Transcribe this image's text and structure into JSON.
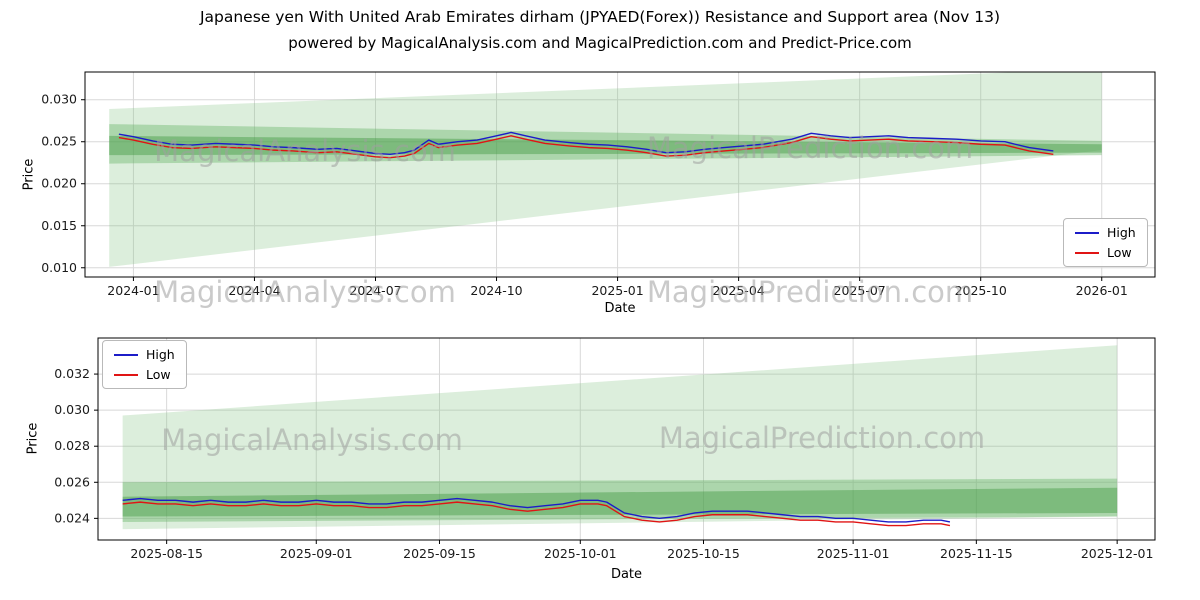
{
  "figure": {
    "title": "Japanese yen With United Arab Emirates dirham (JPYAED(Forex)) Resistance and Support area (Nov 13)",
    "subtitle": "powered by MagicalAnalysis.com and MagicalPrediction.com and Predict-Price.com",
    "watermark_left": "MagicalAnalysis.com",
    "watermark_right": "MagicalPrediction.com"
  },
  "colors": {
    "high": "#1c1cc8",
    "low": "#e01414",
    "grid": "#d8d8d8",
    "spine": "#000000",
    "tick_text": "#1a1a1a",
    "watermark": "#a0a0a0",
    "band_outer": "rgba(130,195,130,0.28)",
    "band_mid": "rgba(95,175,95,0.38)",
    "band_core": "rgba(60,150,60,0.42)"
  },
  "chart_data": [
    {
      "type": "line",
      "name": "history-chart",
      "xlabel": "Date",
      "ylabel": "Price",
      "x_unit": "decimal_year",
      "xlim": [
        2023.9,
        2026.11
      ],
      "ylim": [
        0.0089,
        0.0333
      ],
      "grid": true,
      "legend_position": "center right",
      "xticks": {
        "values": [
          2024.0,
          2024.25,
          2024.5,
          2024.75,
          2025.0,
          2025.25,
          2025.5,
          2025.75,
          2026.0
        ],
        "labels": [
          "2024-01",
          "2024-04",
          "2024-07",
          "2024-10",
          "2025-01",
          "2025-04",
          "2025-07",
          "2025-10",
          "2026-01"
        ]
      },
      "yticks": {
        "values": [
          0.01,
          0.015,
          0.02,
          0.025,
          0.03
        ],
        "labels": [
          "0.010",
          "0.015",
          "0.020",
          "0.025",
          "0.030"
        ]
      },
      "bands": [
        {
          "name": "support-resistance-outer-band",
          "color": "rgba(130,195,130,0.28)",
          "points": [
            [
              2023.95,
              0.0101
            ],
            [
              2026.0,
              0.024
            ],
            [
              2026.0,
              0.0337
            ],
            [
              2023.95,
              0.0289
            ]
          ]
        },
        {
          "name": "support-resistance-mid-band",
          "color": "rgba(95,175,95,0.38)",
          "points": [
            [
              2023.95,
              0.0224
            ],
            [
              2026.0,
              0.0234
            ],
            [
              2026.0,
              0.0251
            ],
            [
              2023.95,
              0.0271
            ]
          ]
        },
        {
          "name": "support-resistance-core-band",
          "color": "rgba(60,150,60,0.42)",
          "points": [
            [
              2023.95,
              0.0234
            ],
            [
              2026.0,
              0.0237
            ],
            [
              2026.0,
              0.0247
            ],
            [
              2023.95,
              0.0257
            ]
          ]
        }
      ],
      "x": [
        2023.97,
        2024.0,
        2024.04,
        2024.08,
        2024.12,
        2024.17,
        2024.21,
        2024.25,
        2024.29,
        2024.33,
        2024.38,
        2024.42,
        2024.46,
        2024.5,
        2024.53,
        2024.56,
        2024.58,
        2024.61,
        2024.63,
        2024.67,
        2024.71,
        2024.75,
        2024.78,
        2024.81,
        2024.85,
        2024.9,
        2024.94,
        2024.98,
        2025.02,
        2025.06,
        2025.1,
        2025.14,
        2025.18,
        2025.22,
        2025.26,
        2025.3,
        2025.33,
        2025.36,
        2025.4,
        2025.44,
        2025.48,
        2025.52,
        2025.56,
        2025.6,
        2025.65,
        2025.7,
        2025.75,
        2025.8,
        2025.85,
        2025.9
      ],
      "series": [
        {
          "name": "High",
          "color": "#1c1cc8",
          "y": [
            0.0259,
            0.0256,
            0.0251,
            0.0247,
            0.0246,
            0.0248,
            0.0247,
            0.0246,
            0.0244,
            0.0243,
            0.0241,
            0.0242,
            0.0239,
            0.0236,
            0.0235,
            0.0237,
            0.024,
            0.0252,
            0.0247,
            0.025,
            0.0252,
            0.0257,
            0.0261,
            0.0257,
            0.0252,
            0.0249,
            0.0247,
            0.0246,
            0.0244,
            0.0241,
            0.0237,
            0.0238,
            0.0241,
            0.0243,
            0.0245,
            0.0247,
            0.025,
            0.0253,
            0.026,
            0.0257,
            0.0255,
            0.0256,
            0.0257,
            0.0255,
            0.0254,
            0.0253,
            0.0251,
            0.025,
            0.0243,
            0.0239
          ]
        },
        {
          "name": "Low",
          "color": "#e01414",
          "y": [
            0.0255,
            0.0252,
            0.0247,
            0.0243,
            0.0242,
            0.0244,
            0.0243,
            0.0242,
            0.024,
            0.0239,
            0.0237,
            0.0238,
            0.0235,
            0.0232,
            0.0231,
            0.0233,
            0.0236,
            0.0248,
            0.0243,
            0.0246,
            0.0248,
            0.0253,
            0.0257,
            0.0253,
            0.0248,
            0.0245,
            0.0243,
            0.0242,
            0.024,
            0.0237,
            0.0233,
            0.0234,
            0.0237,
            0.0239,
            0.0241,
            0.0243,
            0.0246,
            0.0249,
            0.0256,
            0.0253,
            0.0251,
            0.0252,
            0.0253,
            0.0251,
            0.025,
            0.0249,
            0.0247,
            0.0246,
            0.0239,
            0.0235
          ]
        }
      ]
    },
    {
      "type": "line",
      "name": "recent-detail-chart",
      "xlabel": "Date",
      "ylabel": "Price",
      "x_unit": "days_since_2025-08-01",
      "xlim": [
        6.2,
        126.3
      ],
      "ylim": [
        0.0228,
        0.034
      ],
      "grid": true,
      "legend_position": "upper left",
      "xticks": {
        "values": [
          14,
          31,
          45,
          61,
          75,
          92,
          106,
          122
        ],
        "labels": [
          "2025-08-15",
          "2025-09-01",
          "2025-09-15",
          "2025-10-01",
          "2025-10-15",
          "2025-11-01",
          "2025-11-15",
          "2025-12-01"
        ]
      },
      "yticks": {
        "values": [
          0.024,
          0.026,
          0.028,
          0.03,
          0.032
        ],
        "labels": [
          "0.024",
          "0.026",
          "0.028",
          "0.030",
          "0.032"
        ]
      },
      "bands": [
        {
          "name": "support-resistance-outer-band",
          "color": "rgba(130,195,130,0.28)",
          "points": [
            [
              9,
              0.0234
            ],
            [
              122,
              0.0241
            ],
            [
              122,
              0.0336
            ],
            [
              9,
              0.0297
            ]
          ]
        },
        {
          "name": "support-resistance-mid-band",
          "color": "rgba(95,175,95,0.38)",
          "points": [
            [
              9,
              0.0238
            ],
            [
              122,
              0.0241
            ],
            [
              122,
              0.0262
            ],
            [
              9,
              0.026
            ]
          ]
        },
        {
          "name": "support-resistance-core-band",
          "color": "rgba(60,150,60,0.42)",
          "points": [
            [
              9,
              0.0241
            ],
            [
              122,
              0.0243
            ],
            [
              122,
              0.0257
            ],
            [
              9,
              0.0252
            ]
          ]
        }
      ],
      "x": [
        9,
        11,
        13,
        15,
        17,
        19,
        21,
        23,
        25,
        27,
        29,
        31,
        33,
        35,
        37,
        39,
        41,
        43,
        45,
        47,
        49,
        51,
        53,
        55,
        57,
        59,
        61,
        63,
        64,
        66,
        68,
        70,
        72,
        74,
        76,
        78,
        80,
        82,
        84,
        86,
        88,
        90,
        92,
        94,
        96,
        98,
        100,
        102,
        103
      ],
      "series": [
        {
          "name": "High",
          "color": "#1c1cc8",
          "y": [
            0.025,
            0.0251,
            0.025,
            0.025,
            0.0249,
            0.025,
            0.0249,
            0.0249,
            0.025,
            0.0249,
            0.0249,
            0.025,
            0.0249,
            0.0249,
            0.0248,
            0.0248,
            0.0249,
            0.0249,
            0.025,
            0.0251,
            0.025,
            0.0249,
            0.0247,
            0.0246,
            0.0247,
            0.0248,
            0.025,
            0.025,
            0.0249,
            0.0243,
            0.0241,
            0.024,
            0.0241,
            0.0243,
            0.0244,
            0.0244,
            0.0244,
            0.0243,
            0.0242,
            0.0241,
            0.0241,
            0.024,
            0.024,
            0.0239,
            0.0238,
            0.0238,
            0.0239,
            0.0239,
            0.0238
          ]
        },
        {
          "name": "Low",
          "color": "#e01414",
          "y": [
            0.0248,
            0.0249,
            0.0248,
            0.0248,
            0.0247,
            0.0248,
            0.0247,
            0.0247,
            0.0248,
            0.0247,
            0.0247,
            0.0248,
            0.0247,
            0.0247,
            0.0246,
            0.0246,
            0.0247,
            0.0247,
            0.0248,
            0.0249,
            0.0248,
            0.0247,
            0.0245,
            0.0244,
            0.0245,
            0.0246,
            0.0248,
            0.0248,
            0.0247,
            0.0241,
            0.0239,
            0.0238,
            0.0239,
            0.0241,
            0.0242,
            0.0242,
            0.0242,
            0.0241,
            0.024,
            0.0239,
            0.0239,
            0.0238,
            0.0238,
            0.0237,
            0.0236,
            0.0236,
            0.0237,
            0.0237,
            0.0236
          ]
        }
      ]
    }
  ]
}
